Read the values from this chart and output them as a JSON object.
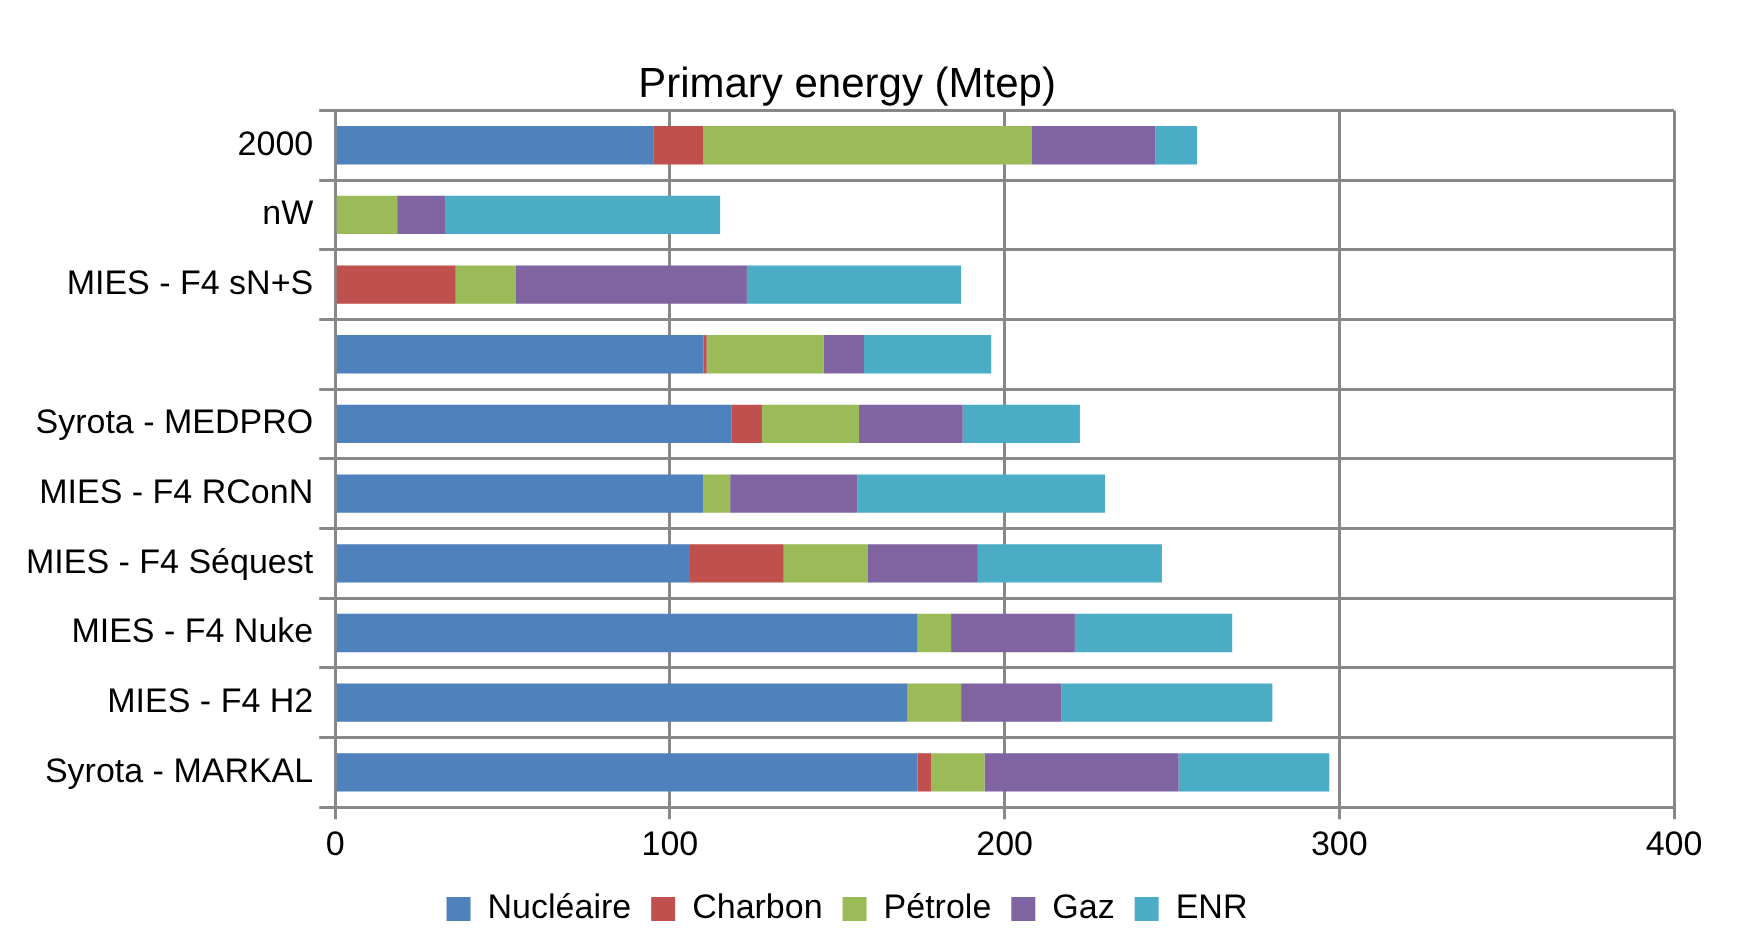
{
  "chart_data": {
    "type": "bar",
    "orientation": "horizontal",
    "stacked": true,
    "title": "Primary energy (Mtep)",
    "categories": [
      "2000",
      "nW",
      "MIES - F4 sN+S",
      null,
      "Syrota - MEDPRO",
      "MIES - F4 RConN",
      "MIES - F4 Séquest",
      "MIES - F4 Nuke",
      "MIES - F4 H2",
      "Syrota - MARKAL"
    ],
    "series": [
      {
        "name": "Nucléaire",
        "color": "#4f81bd",
        "values": [
          95,
          0,
          0,
          110,
          118.5,
          110,
          106,
          174,
          171,
          174
        ]
      },
      {
        "name": "Charbon",
        "color": "#c0504d",
        "values": [
          15,
          0,
          36,
          1,
          9,
          0,
          28,
          0,
          0,
          4
        ]
      },
      {
        "name": "Pétrole",
        "color": "#9bbb59",
        "values": [
          98,
          18.5,
          18,
          35,
          29,
          8,
          25,
          10,
          16,
          16
        ]
      },
      {
        "name": "Gaz",
        "color": "#8064a2",
        "values": [
          37,
          14.5,
          69,
          12,
          31,
          38,
          33,
          37,
          30,
          58
        ]
      },
      {
        "name": "ENR",
        "color": "#4bacc6",
        "values": [
          12.5,
          82,
          64,
          38,
          35,
          74,
          55,
          47,
          63,
          45
        ]
      }
    ],
    "xlim": [
      0,
      400
    ],
    "xticks": [
      0,
      100,
      200,
      300,
      400
    ],
    "grid": true,
    "legend": "bottom"
  }
}
